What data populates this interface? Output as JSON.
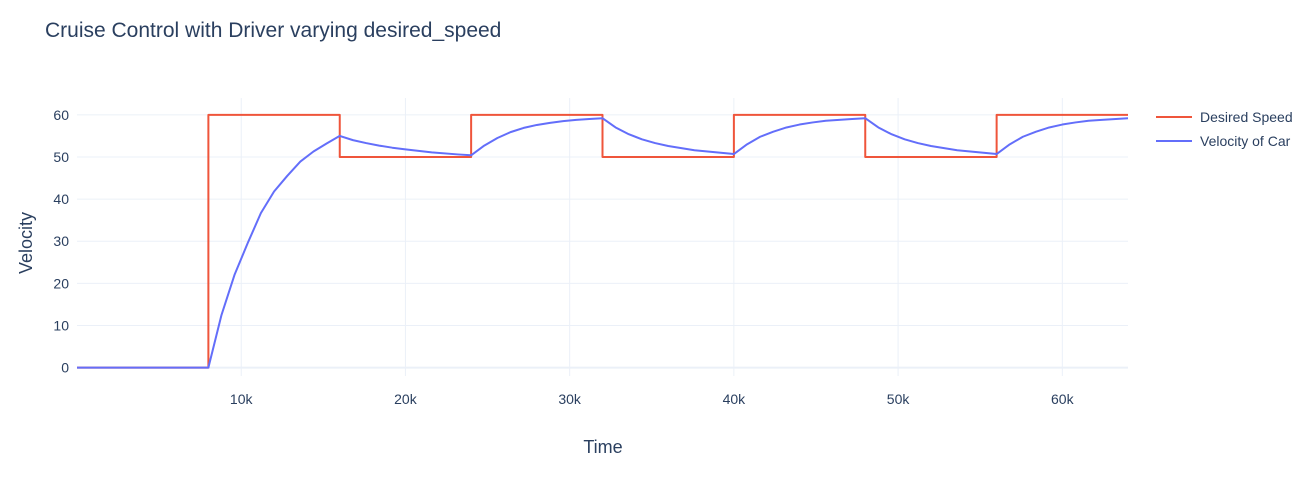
{
  "chart_data": {
    "type": "line",
    "title": "Cruise Control with Driver varying desired_speed",
    "xlabel": "Time",
    "ylabel": "Velocity",
    "xlim": [
      0,
      64000
    ],
    "ylim": [
      -2,
      64
    ],
    "xticks": [
      10000,
      20000,
      30000,
      40000,
      50000,
      60000
    ],
    "xtick_labels": [
      "10k",
      "20k",
      "30k",
      "40k",
      "50k",
      "60k"
    ],
    "yticks": [
      0,
      10,
      20,
      30,
      40,
      50,
      60
    ],
    "ytick_labels": [
      "0",
      "10",
      "20",
      "30",
      "40",
      "50",
      "60"
    ],
    "grid": true,
    "legend_position": "top-right",
    "series": [
      {
        "name": "Desired Speed",
        "color": "#EF553B",
        "x": [
          0,
          8000,
          8000,
          16000,
          16000,
          24000,
          24000,
          32000,
          32000,
          40000,
          40000,
          48000,
          48000,
          56000,
          56000,
          64000
        ],
        "y": [
          0,
          0,
          60,
          60,
          50,
          50,
          60,
          60,
          50,
          50,
          60,
          60,
          50,
          50,
          60,
          60
        ]
      },
      {
        "name": "Velocity of Car",
        "color": "#636EFA",
        "x": [
          0,
          8000,
          8800,
          9600,
          10400,
          11200,
          12000,
          12800,
          13600,
          14400,
          15200,
          16000,
          16800,
          17600,
          18400,
          19200,
          20000,
          21600,
          23200,
          24000,
          24800,
          25600,
          26400,
          27200,
          28000,
          28800,
          29600,
          30400,
          31200,
          32000,
          32800,
          33600,
          34400,
          35200,
          36000,
          37600,
          39200,
          40000,
          40800,
          41600,
          42400,
          43200,
          44000,
          44800,
          45600,
          46400,
          47200,
          48000,
          48800,
          49600,
          50400,
          51200,
          52000,
          53600,
          55200,
          56000,
          56800,
          57600,
          58400,
          59200,
          60000,
          60800,
          61600,
          62400,
          64000
        ],
        "y": [
          0,
          0,
          12.5,
          22.1,
          29.6,
          36.7,
          41.8,
          45.5,
          48.9,
          51.3,
          53.2,
          55.0,
          54.0,
          53.3,
          52.7,
          52.2,
          51.8,
          51.1,
          50.6,
          50.4,
          52.7,
          54.5,
          55.9,
          56.9,
          57.6,
          58.1,
          58.5,
          58.8,
          59.0,
          59.2,
          57.0,
          55.4,
          54.2,
          53.3,
          52.6,
          51.6,
          51.0,
          50.7,
          53.0,
          54.8,
          56.0,
          57.0,
          57.7,
          58.2,
          58.6,
          58.8,
          59.0,
          59.2,
          57.0,
          55.4,
          54.2,
          53.3,
          52.6,
          51.6,
          51.0,
          50.7,
          53.0,
          54.8,
          56.0,
          57.0,
          57.7,
          58.2,
          58.6,
          58.8,
          59.2
        ]
      }
    ]
  }
}
